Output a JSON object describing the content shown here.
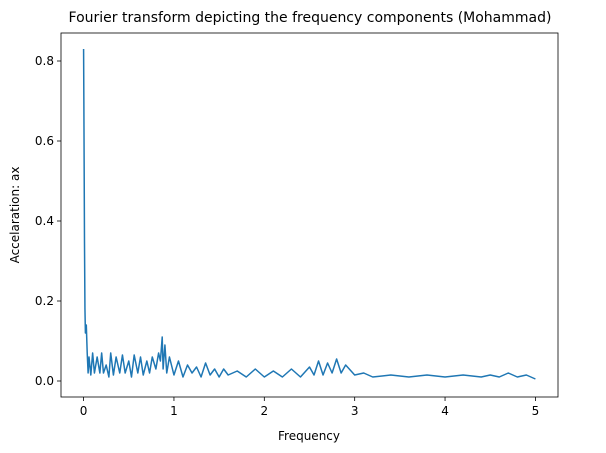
{
  "chart_data": {
    "type": "line",
    "title": "Fourier transform depicting the frequency components (Mohammad)",
    "xlabel": "Frequency",
    "ylabel": "Accelaration: ax",
    "xlim": [
      -0.25,
      5.25
    ],
    "ylim": [
      -0.04,
      0.87
    ],
    "xticks": [
      0,
      1,
      2,
      3,
      4,
      5
    ],
    "yticks": [
      0.0,
      0.2,
      0.4,
      0.6,
      0.8
    ],
    "xtick_labels": [
      "0",
      "1",
      "2",
      "3",
      "4",
      "5"
    ],
    "ytick_labels": [
      "0.0",
      "0.2",
      "0.4",
      "0.6",
      "0.8"
    ],
    "grid": false,
    "legend": "none",
    "line_color": "#1f77b4",
    "series": [
      {
        "x": [
          0.0,
          0.003,
          0.006,
          0.01,
          0.015,
          0.02,
          0.03,
          0.04,
          0.05,
          0.06,
          0.08,
          0.1,
          0.12,
          0.15,
          0.18,
          0.2,
          0.22,
          0.25,
          0.28,
          0.3,
          0.33,
          0.36,
          0.4,
          0.43,
          0.46,
          0.5,
          0.53,
          0.56,
          0.6,
          0.63,
          0.66,
          0.7,
          0.73,
          0.76,
          0.8,
          0.83,
          0.85,
          0.87,
          0.88,
          0.9,
          0.92,
          0.95,
          1.0,
          1.05,
          1.1,
          1.15,
          1.2,
          1.25,
          1.3,
          1.35,
          1.4,
          1.45,
          1.5,
          1.55,
          1.6,
          1.7,
          1.8,
          1.9,
          2.0,
          2.1,
          2.2,
          2.3,
          2.4,
          2.5,
          2.55,
          2.6,
          2.65,
          2.7,
          2.75,
          2.8,
          2.85,
          2.9,
          3.0,
          3.1,
          3.2,
          3.4,
          3.6,
          3.8,
          4.0,
          4.2,
          4.4,
          4.5,
          4.6,
          4.7,
          4.8,
          4.9,
          5.0
        ],
        "y": [
          0.83,
          0.7,
          0.55,
          0.35,
          0.18,
          0.12,
          0.14,
          0.07,
          0.02,
          0.06,
          0.015,
          0.07,
          0.02,
          0.06,
          0.02,
          0.07,
          0.02,
          0.04,
          0.01,
          0.07,
          0.015,
          0.06,
          0.02,
          0.065,
          0.02,
          0.05,
          0.01,
          0.065,
          0.02,
          0.06,
          0.015,
          0.05,
          0.02,
          0.06,
          0.03,
          0.07,
          0.05,
          0.11,
          0.03,
          0.09,
          0.02,
          0.06,
          0.015,
          0.05,
          0.01,
          0.04,
          0.02,
          0.035,
          0.01,
          0.045,
          0.015,
          0.03,
          0.01,
          0.03,
          0.015,
          0.025,
          0.01,
          0.03,
          0.01,
          0.025,
          0.01,
          0.03,
          0.01,
          0.035,
          0.015,
          0.05,
          0.015,
          0.045,
          0.02,
          0.055,
          0.02,
          0.04,
          0.015,
          0.02,
          0.01,
          0.015,
          0.01,
          0.015,
          0.01,
          0.015,
          0.01,
          0.015,
          0.01,
          0.02,
          0.01,
          0.015,
          0.005
        ]
      }
    ]
  }
}
